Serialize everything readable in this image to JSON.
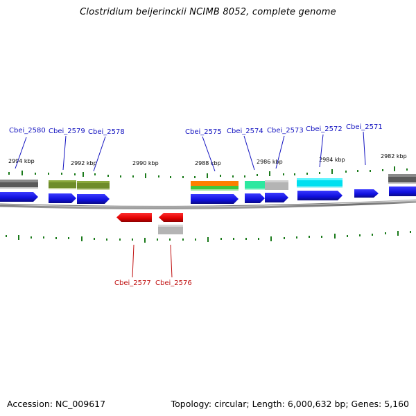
{
  "title": "Clostridium beijerinckii NCIMB 8052, complete genome",
  "footer": {
    "accession": "Accession: NC_009617",
    "summary": "Topology: circular; Length: 6,000,632 bp; Genes: 5,160"
  },
  "scale_labels": [
    "2994 kbp",
    "2992 kbp",
    "2990 kbp",
    "2988 kbp",
    "2986 kbp",
    "2984 kbp",
    "2982 kbp"
  ],
  "genes_forward": [
    "Cbei_2580",
    "Cbei_2579",
    "Cbei_2578",
    "Cbei_2575",
    "Cbei_2574",
    "Cbei_2573",
    "Cbei_2572",
    "Cbei_2571"
  ],
  "genes_reverse": [
    "Cbei_2577",
    "Cbei_2576"
  ],
  "colors": {
    "forward_label": "#1010c0",
    "reverse_label": "#c01010",
    "cds_forward": "#1414e0",
    "cds_reverse": "#e00000",
    "tick": "#1a7a1a",
    "backbone": "#7a7a7a"
  }
}
